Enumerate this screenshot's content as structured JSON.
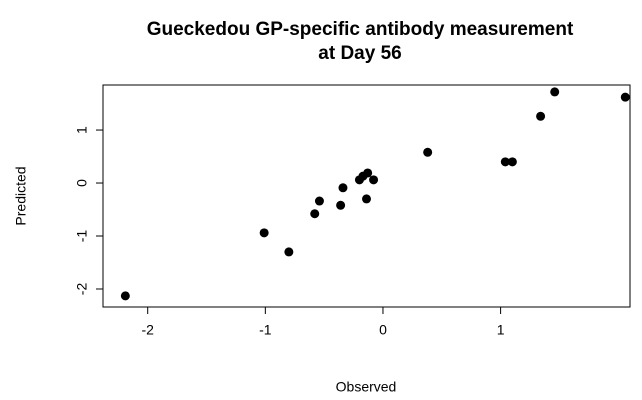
{
  "chart_data": {
    "type": "scatter",
    "title": [
      "Gueckedou GP-specific antibody measurement",
      "at Day 56"
    ],
    "x_label": "Observed",
    "y_label": "Predicted",
    "x": [
      -2.19,
      -1.01,
      -0.8,
      -0.54,
      -0.58,
      -0.34,
      -0.36,
      -0.2,
      -0.17,
      -0.13,
      -0.08,
      -0.14,
      0.38,
      1.04,
      1.1,
      1.34,
      1.46,
      2.06
    ],
    "values": [
      -2.13,
      -0.94,
      -1.3,
      -0.34,
      -0.58,
      -0.09,
      -0.42,
      0.06,
      0.13,
      0.19,
      0.06,
      -0.3,
      0.58,
      0.4,
      0.4,
      1.26,
      1.72,
      1.62
    ],
    "color": "#000000",
    "xlim": [
      -2.38,
      2.1
    ],
    "ylim": [
      -2.34,
      1.85
    ],
    "xticks": [
      -2,
      -1,
      0,
      1
    ],
    "yticks": [
      -2,
      -1,
      0,
      1
    ]
  }
}
